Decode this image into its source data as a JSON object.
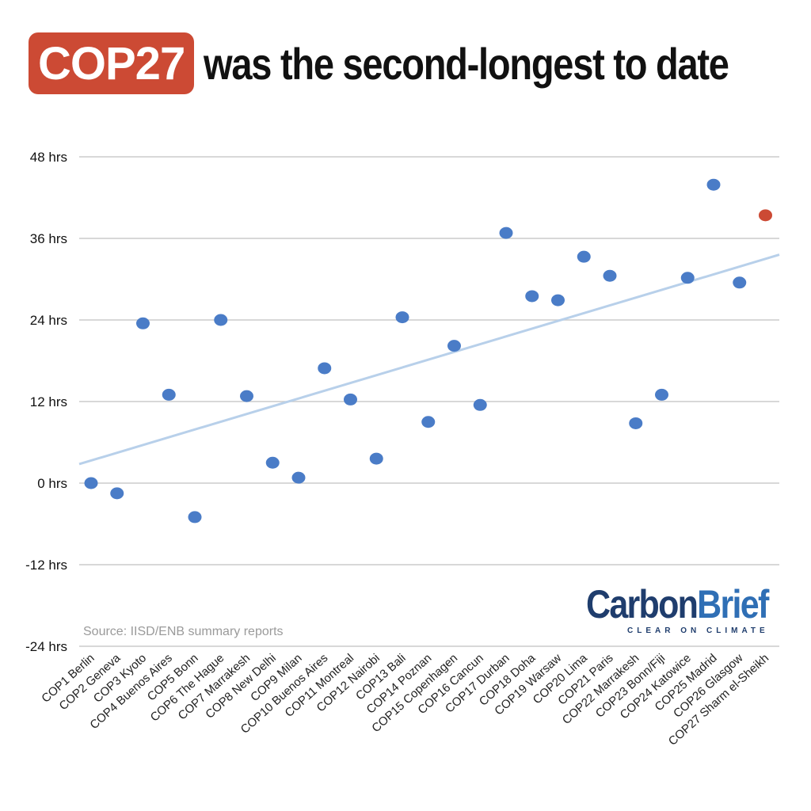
{
  "title": {
    "badge": "COP27",
    "rest": "was the second-longest to date"
  },
  "source": "Source: IISD/ENB summary reports",
  "logo": {
    "name_part1": "Carbon",
    "name_part2": "Brief",
    "tagline": "CLEAR ON CLIMATE"
  },
  "colors": {
    "badge": "#cc4a34",
    "point": "#4a7cc7",
    "highlight": "#cc4a34",
    "trend": "#b8d0ea",
    "grid": "#cccccc",
    "logo_dark": "#1f3d6d",
    "logo_light": "#2f6fb5"
  },
  "chart_data": {
    "type": "scatter",
    "title": "COP27 was the second-longest to date",
    "xlabel": "",
    "ylabel": "",
    "ylim": [
      -24,
      48
    ],
    "yticks": [
      48,
      36,
      24,
      12,
      0,
      -12,
      -24
    ],
    "ytick_labels": [
      "48 hrs",
      "36 hrs",
      "24 hrs",
      "12 hrs",
      "0 hrs",
      "-12 hrs",
      "-24 hrs"
    ],
    "grid": true,
    "categories": [
      "COP1 Berlin",
      "COP2 Geneva",
      "COP3 Kyoto",
      "COP4 Buenos Aires",
      "COP5 Bonn",
      "COP6 The Hague",
      "COP7 Marrakesh",
      "COP8 New Delhi",
      "COP9 Milan",
      "COP10 Buenos Aires",
      "COP11 Montreal",
      "COP12 Nairobi",
      "COP13 Bali",
      "COP14 Poznan",
      "COP15 Copenhagen",
      "COP16 Cancun",
      "COP17 Durban",
      "COP18 Doha",
      "COP19 Warsaw",
      "COP20 Lima",
      "COP21 Paris",
      "COP22 Marrakesh",
      "COP23 Bonn/Fiji",
      "COP24 Katowice",
      "COP25 Madrid",
      "COP26 Glasgow",
      "COP27 Sharm el-Sheikh"
    ],
    "values": [
      0,
      -1.5,
      23.5,
      13,
      -5,
      24,
      12.8,
      3,
      0.8,
      16.9,
      12.3,
      3.6,
      24.4,
      9,
      20.2,
      11.5,
      36.8,
      27.5,
      26.9,
      33.3,
      30.5,
      8.8,
      13,
      30.2,
      43.9,
      29.5,
      39.4
    ],
    "highlight_index": 26,
    "trendline": {
      "start": 2.8,
      "end": 33.6
    }
  }
}
